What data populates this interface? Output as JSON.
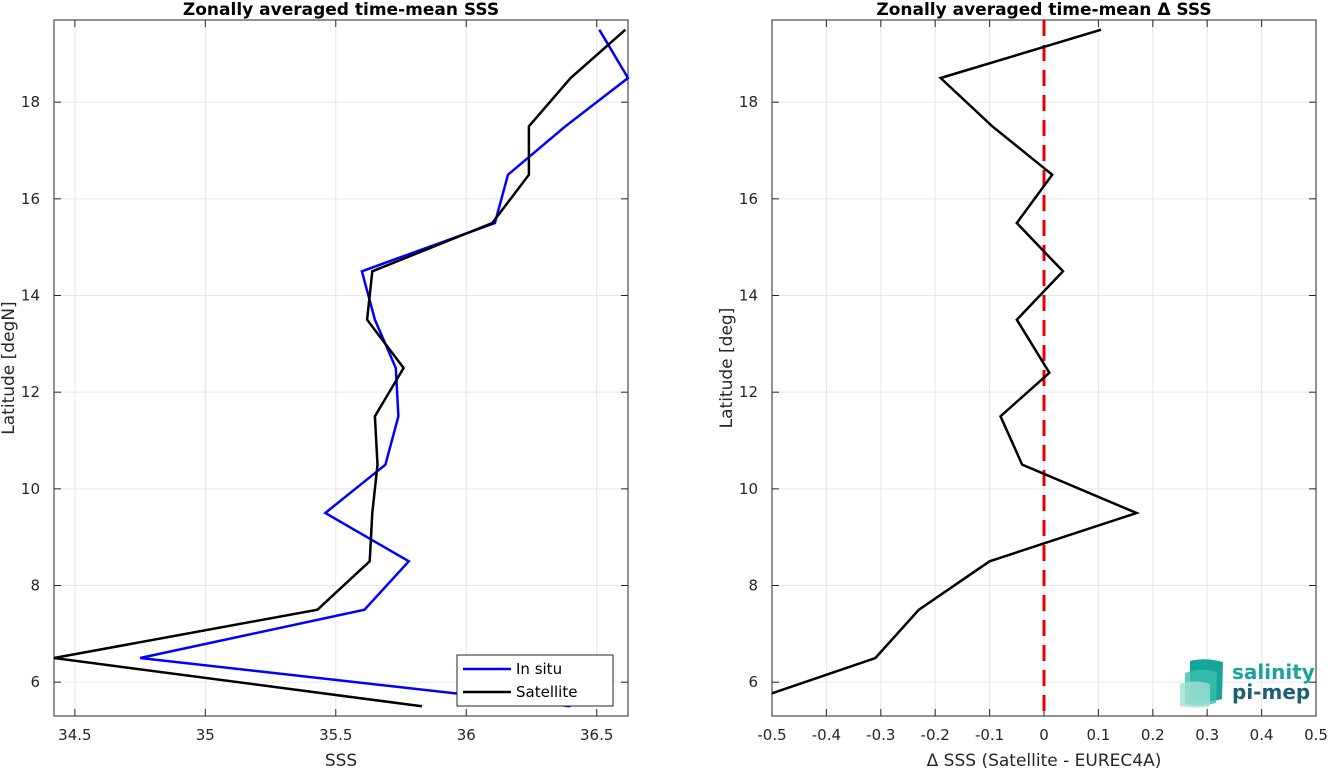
{
  "chart_data": [
    {
      "type": "line",
      "title": "Zonally averaged time-mean SSS",
      "xlabel": "SSS",
      "ylabel": "Latitude [degN]",
      "xlim": [
        34.42,
        36.62
      ],
      "ylim": [
        5.3,
        19.7
      ],
      "xticks": [
        34.5,
        35,
        35.5,
        36,
        36.5
      ],
      "xtick_labels": [
        "34.5",
        "35",
        "35.5",
        "36",
        "36.5"
      ],
      "yticks": [
        6,
        8,
        10,
        12,
        14,
        16,
        18
      ],
      "ytick_labels": [
        "6",
        "8",
        "10",
        "12",
        "14",
        "16",
        "18"
      ],
      "grid": true,
      "legend_position": "bottom-right",
      "series": [
        {
          "name": "In situ",
          "color": "#0000ff",
          "x": [
            36.4,
            34.75,
            35.61,
            35.78,
            35.46,
            35.69,
            35.74,
            35.73,
            35.65,
            35.6,
            36.11,
            36.16,
            36.38,
            36.62,
            36.51
          ],
          "y": [
            5.5,
            6.5,
            7.5,
            8.5,
            9.5,
            10.5,
            11.5,
            12.5,
            13.5,
            14.5,
            15.5,
            16.5,
            17.5,
            18.5,
            19.5
          ]
        },
        {
          "name": "Satellite",
          "color": "#000000",
          "x": [
            35.83,
            34.42,
            35.43,
            35.63,
            35.64,
            35.66,
            35.65,
            35.76,
            35.62,
            35.64,
            36.1,
            36.24,
            36.24,
            36.4,
            36.61
          ],
          "y": [
            5.5,
            6.5,
            7.5,
            8.5,
            9.5,
            10.5,
            11.5,
            12.5,
            13.5,
            14.5,
            15.5,
            16.5,
            17.5,
            18.5,
            19.5
          ]
        }
      ]
    },
    {
      "type": "line",
      "title": "Zonally averaged time-mean Δ SSS",
      "xlabel": "Δ SSS (Satellite - EUREC4A)",
      "ylabel": "Latitude [deg]",
      "xlim": [
        -0.5,
        0.5
      ],
      "ylim": [
        5.3,
        19.7
      ],
      "xticks": [
        -0.5,
        -0.4,
        -0.3,
        -0.2,
        -0.1,
        0,
        0.1,
        0.2,
        0.3,
        0.4,
        0.5
      ],
      "xtick_labels": [
        "-0.5",
        "-0.4",
        "-0.3",
        "-0.2",
        "-0.1",
        "0",
        "0.1",
        "0.2",
        "0.3",
        "0.4",
        "0.5"
      ],
      "yticks": [
        6,
        8,
        10,
        12,
        14,
        16,
        18
      ],
      "ytick_labels": [
        "6",
        "8",
        "10",
        "12",
        "14",
        "16",
        "18"
      ],
      "grid": true,
      "reference_line": {
        "x": 0,
        "color": "#e60000",
        "style": "dashed"
      },
      "series": [
        {
          "color": "#000000",
          "x": [
            -0.5,
            -0.31,
            -0.23,
            -0.1,
            0.17,
            -0.04,
            -0.08,
            0.01,
            -0.05,
            0.035,
            -0.05,
            0.015,
            -0.095,
            -0.19,
            0.105
          ],
          "y": [
            5.77,
            6.5,
            7.5,
            8.5,
            9.5,
            10.5,
            11.5,
            12.4,
            13.5,
            14.5,
            15.5,
            16.5,
            17.5,
            18.5,
            19.5
          ]
        }
      ]
    }
  ],
  "logo": {
    "line1": "salinity",
    "line2": "pi-mep",
    "color1": "#17a59b",
    "color2": "#1d5f72"
  }
}
